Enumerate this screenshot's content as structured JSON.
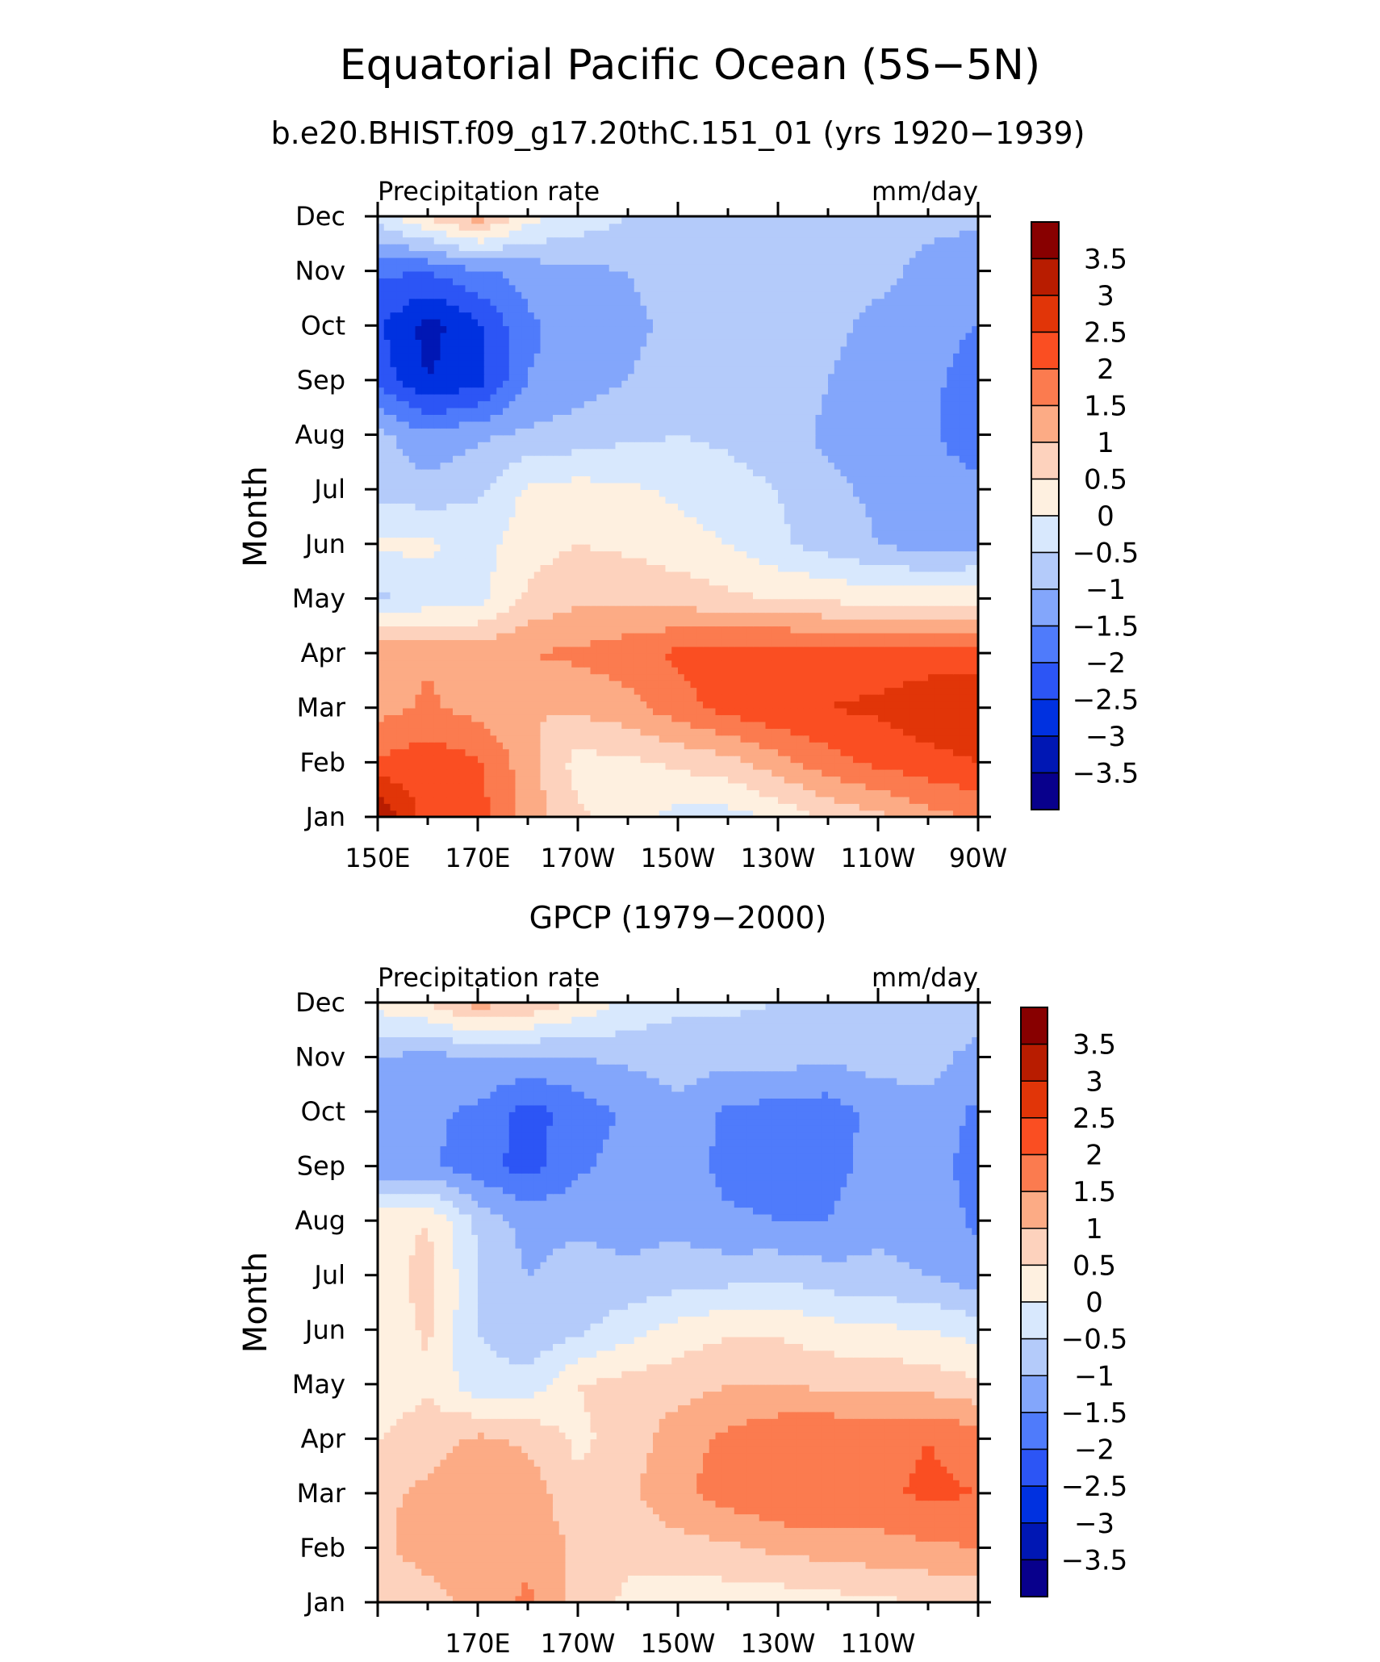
{
  "figure": {
    "title": "Equatorial Pacific Ocean (5S−5N)"
  },
  "colors": {
    "levels": [
      "#08008c",
      "#0017b4",
      "#0031e0",
      "#2c55f5",
      "#4f7bfb",
      "#83a6fb",
      "#b4cbfa",
      "#d8e8fd",
      "#fef0e0",
      "#fdd2bd",
      "#fcab85",
      "#fb7b4f",
      "#fa4e22",
      "#e13508",
      "#b81c00",
      "#880000"
    ]
  },
  "chart_data": [
    {
      "type": "heatmap",
      "subtitle": "b.e20.BHIST.f09_g17.20thC.151_01 (yrs 1920−1939)",
      "left_label": "Precipitation rate",
      "right_label": "mm/day",
      "ylabel": "Month",
      "x_ticks": [
        "150E",
        "170E",
        "170W",
        "150W",
        "130W",
        "110W",
        "90W"
      ],
      "y_ticks": [
        "Jan",
        "Feb",
        "Mar",
        "Apr",
        "May",
        "Jun",
        "Jul",
        "Aug",
        "Sep",
        "Oct",
        "Nov",
        "Dec"
      ],
      "colorbar_labels": [
        "3.5",
        "3",
        "2.5",
        "2",
        "1.5",
        "1",
        "0.5",
        "0",
        "−0.5",
        "−1",
        "−1.5",
        "−2",
        "−2.5",
        "−3",
        "−3.5"
      ],
      "x": [
        "150E",
        "160E",
        "170E",
        "180",
        "170W",
        "160W",
        "150W",
        "140W",
        "130W",
        "120W",
        "110W",
        "100W",
        "90W"
      ],
      "y": [
        "Jan",
        "Feb",
        "Mar",
        "Apr",
        "May",
        "Jun",
        "Jul",
        "Aug",
        "Sep",
        "Oct",
        "Nov",
        "Dec"
      ],
      "z": [
        [
          3.6,
          2.2,
          2.2,
          1.3,
          0.6,
          0.2,
          -0.2,
          -0.2,
          0.1,
          0.6,
          0.9,
          1.3,
          1.6
        ],
        [
          2.1,
          2.3,
          2.1,
          1.2,
          0.3,
          0.4,
          0.6,
          0.8,
          1.3,
          1.8,
          2.1,
          2.3,
          2.5
        ],
        [
          1.3,
          1.6,
          1.3,
          1.0,
          1.1,
          1.3,
          1.8,
          2.2,
          2.4,
          2.5,
          2.6,
          2.9,
          2.9
        ],
        [
          1.4,
          1.4,
          1.4,
          1.5,
          1.6,
          1.8,
          2.1,
          2.3,
          2.3,
          2.3,
          2.2,
          2.2,
          2.2
        ],
        [
          -0.6,
          -0.3,
          -0.2,
          0.6,
          0.9,
          0.9,
          0.8,
          0.6,
          0.5,
          0.4,
          0.3,
          0.3,
          0.3
        ],
        [
          0.1,
          0.1,
          -0.2,
          0.3,
          0.5,
          0.4,
          0.2,
          0.0,
          -0.4,
          -0.7,
          -1.0,
          -1.2,
          -1.1
        ],
        [
          -0.7,
          -0.8,
          -0.6,
          0.1,
          0.2,
          0.1,
          -0.1,
          -0.3,
          -0.5,
          -0.9,
          -1.1,
          -1.2,
          -1.3
        ],
        [
          -0.8,
          -1.4,
          -1.1,
          -0.9,
          -0.8,
          -0.6,
          -0.5,
          -0.6,
          -0.8,
          -1.1,
          -1.3,
          -1.4,
          -1.9
        ],
        [
          -2.2,
          -3.0,
          -2.7,
          -1.5,
          -1.2,
          -1.0,
          -0.8,
          -0.6,
          -0.7,
          -1.0,
          -1.2,
          -1.3,
          -1.9
        ],
        [
          -2.4,
          -3.2,
          -2.6,
          -1.6,
          -1.3,
          -1.1,
          -0.9,
          -0.7,
          -0.7,
          -0.9,
          -1.1,
          -1.2,
          -1.5
        ],
        [
          -1.9,
          -2.0,
          -1.6,
          -1.3,
          -1.1,
          -1.0,
          -0.8,
          -0.7,
          -0.7,
          -0.8,
          -0.9,
          -1.1,
          -1.3
        ],
        [
          -0.3,
          0.6,
          1.3,
          0.2,
          -0.2,
          -0.5,
          -0.7,
          -0.8,
          -0.8,
          -0.8,
          -0.8,
          -0.9,
          -0.9
        ]
      ]
    },
    {
      "type": "heatmap",
      "subtitle": "GPCP (1979−2000)",
      "left_label": "Precipitation rate",
      "right_label": "mm/day",
      "ylabel": "Month",
      "x_ticks": [
        "",
        "170E",
        "170W",
        "150W",
        "130W",
        "110W",
        ""
      ],
      "y_ticks": [
        "Jan",
        "Feb",
        "Mar",
        "Apr",
        "May",
        "Jun",
        "Jul",
        "Aug",
        "Sep",
        "Oct",
        "Nov",
        "Dec"
      ],
      "colorbar_labels": [
        "3.5",
        "3",
        "2.5",
        "2",
        "1.5",
        "1",
        "0.5",
        "0",
        "−0.5",
        "−1",
        "−1.5",
        "−2",
        "−2.5",
        "−3",
        "−3.5"
      ],
      "x": [
        "150E",
        "160E",
        "170E",
        "180",
        "170W",
        "160W",
        "150W",
        "140W",
        "130W",
        "120W",
        "110W",
        "100W",
        "90W"
      ],
      "y": [
        "Jan",
        "Feb",
        "Mar",
        "Apr",
        "May",
        "Jun",
        "Jul",
        "Aug",
        "Sep",
        "Oct",
        "Nov",
        "Dec"
      ],
      "z": [
        [
          0.6,
          0.8,
          1.2,
          1.6,
          0.8,
          0.4,
          0.2,
          0.2,
          0.2,
          0.3,
          0.4,
          0.5,
          0.6
        ],
        [
          0.9,
          1.2,
          1.3,
          1.4,
          0.9,
          0.6,
          0.8,
          0.9,
          1.1,
          1.2,
          1.3,
          1.4,
          1.5
        ],
        [
          0.9,
          1.1,
          1.4,
          1.3,
          0.6,
          0.9,
          1.4,
          1.7,
          2.0,
          2.0,
          1.9,
          2.1,
          2.0
        ],
        [
          0.5,
          0.8,
          1.1,
          0.9,
          0.4,
          0.7,
          1.3,
          1.6,
          1.9,
          2.0,
          1.8,
          2.0,
          1.8
        ],
        [
          0.2,
          0.4,
          -0.3,
          -0.3,
          0.5,
          0.7,
          0.8,
          1.0,
          1.0,
          0.9,
          0.9,
          0.8,
          0.6
        ],
        [
          0.1,
          0.6,
          -0.5,
          -0.9,
          -0.6,
          -0.2,
          0.2,
          0.4,
          0.4,
          0.2,
          0.1,
          0.0,
          -0.2
        ],
        [
          0.2,
          0.7,
          -0.5,
          -1.0,
          -0.8,
          -0.9,
          -0.8,
          -0.7,
          -0.6,
          -0.8,
          -0.9,
          -1.0,
          -1.3
        ],
        [
          0.3,
          0.5,
          -0.6,
          -1.2,
          -1.1,
          -1.2,
          -1.1,
          -1.4,
          -1.5,
          -1.5,
          -1.1,
          -1.2,
          -1.6
        ],
        [
          -1.3,
          -1.4,
          -1.8,
          -2.2,
          -1.6,
          -1.3,
          -1.2,
          -1.7,
          -1.8,
          -1.7,
          -1.3,
          -1.3,
          -1.7
        ],
        [
          -1.2,
          -1.4,
          -1.6,
          -2.2,
          -1.8,
          -1.4,
          -1.1,
          -1.6,
          -1.7,
          -1.8,
          -1.3,
          -1.2,
          -1.6
        ],
        [
          -1.0,
          -1.2,
          -1.0,
          -1.1,
          -1.0,
          -0.9,
          -0.8,
          -0.8,
          -0.8,
          -0.9,
          -0.8,
          -0.8,
          -1.2
        ],
        [
          0.2,
          0.5,
          1.2,
          0.9,
          0.4,
          -0.1,
          -0.4,
          -0.4,
          -0.5,
          -0.5,
          -0.6,
          -0.6,
          -0.7
        ]
      ]
    }
  ]
}
